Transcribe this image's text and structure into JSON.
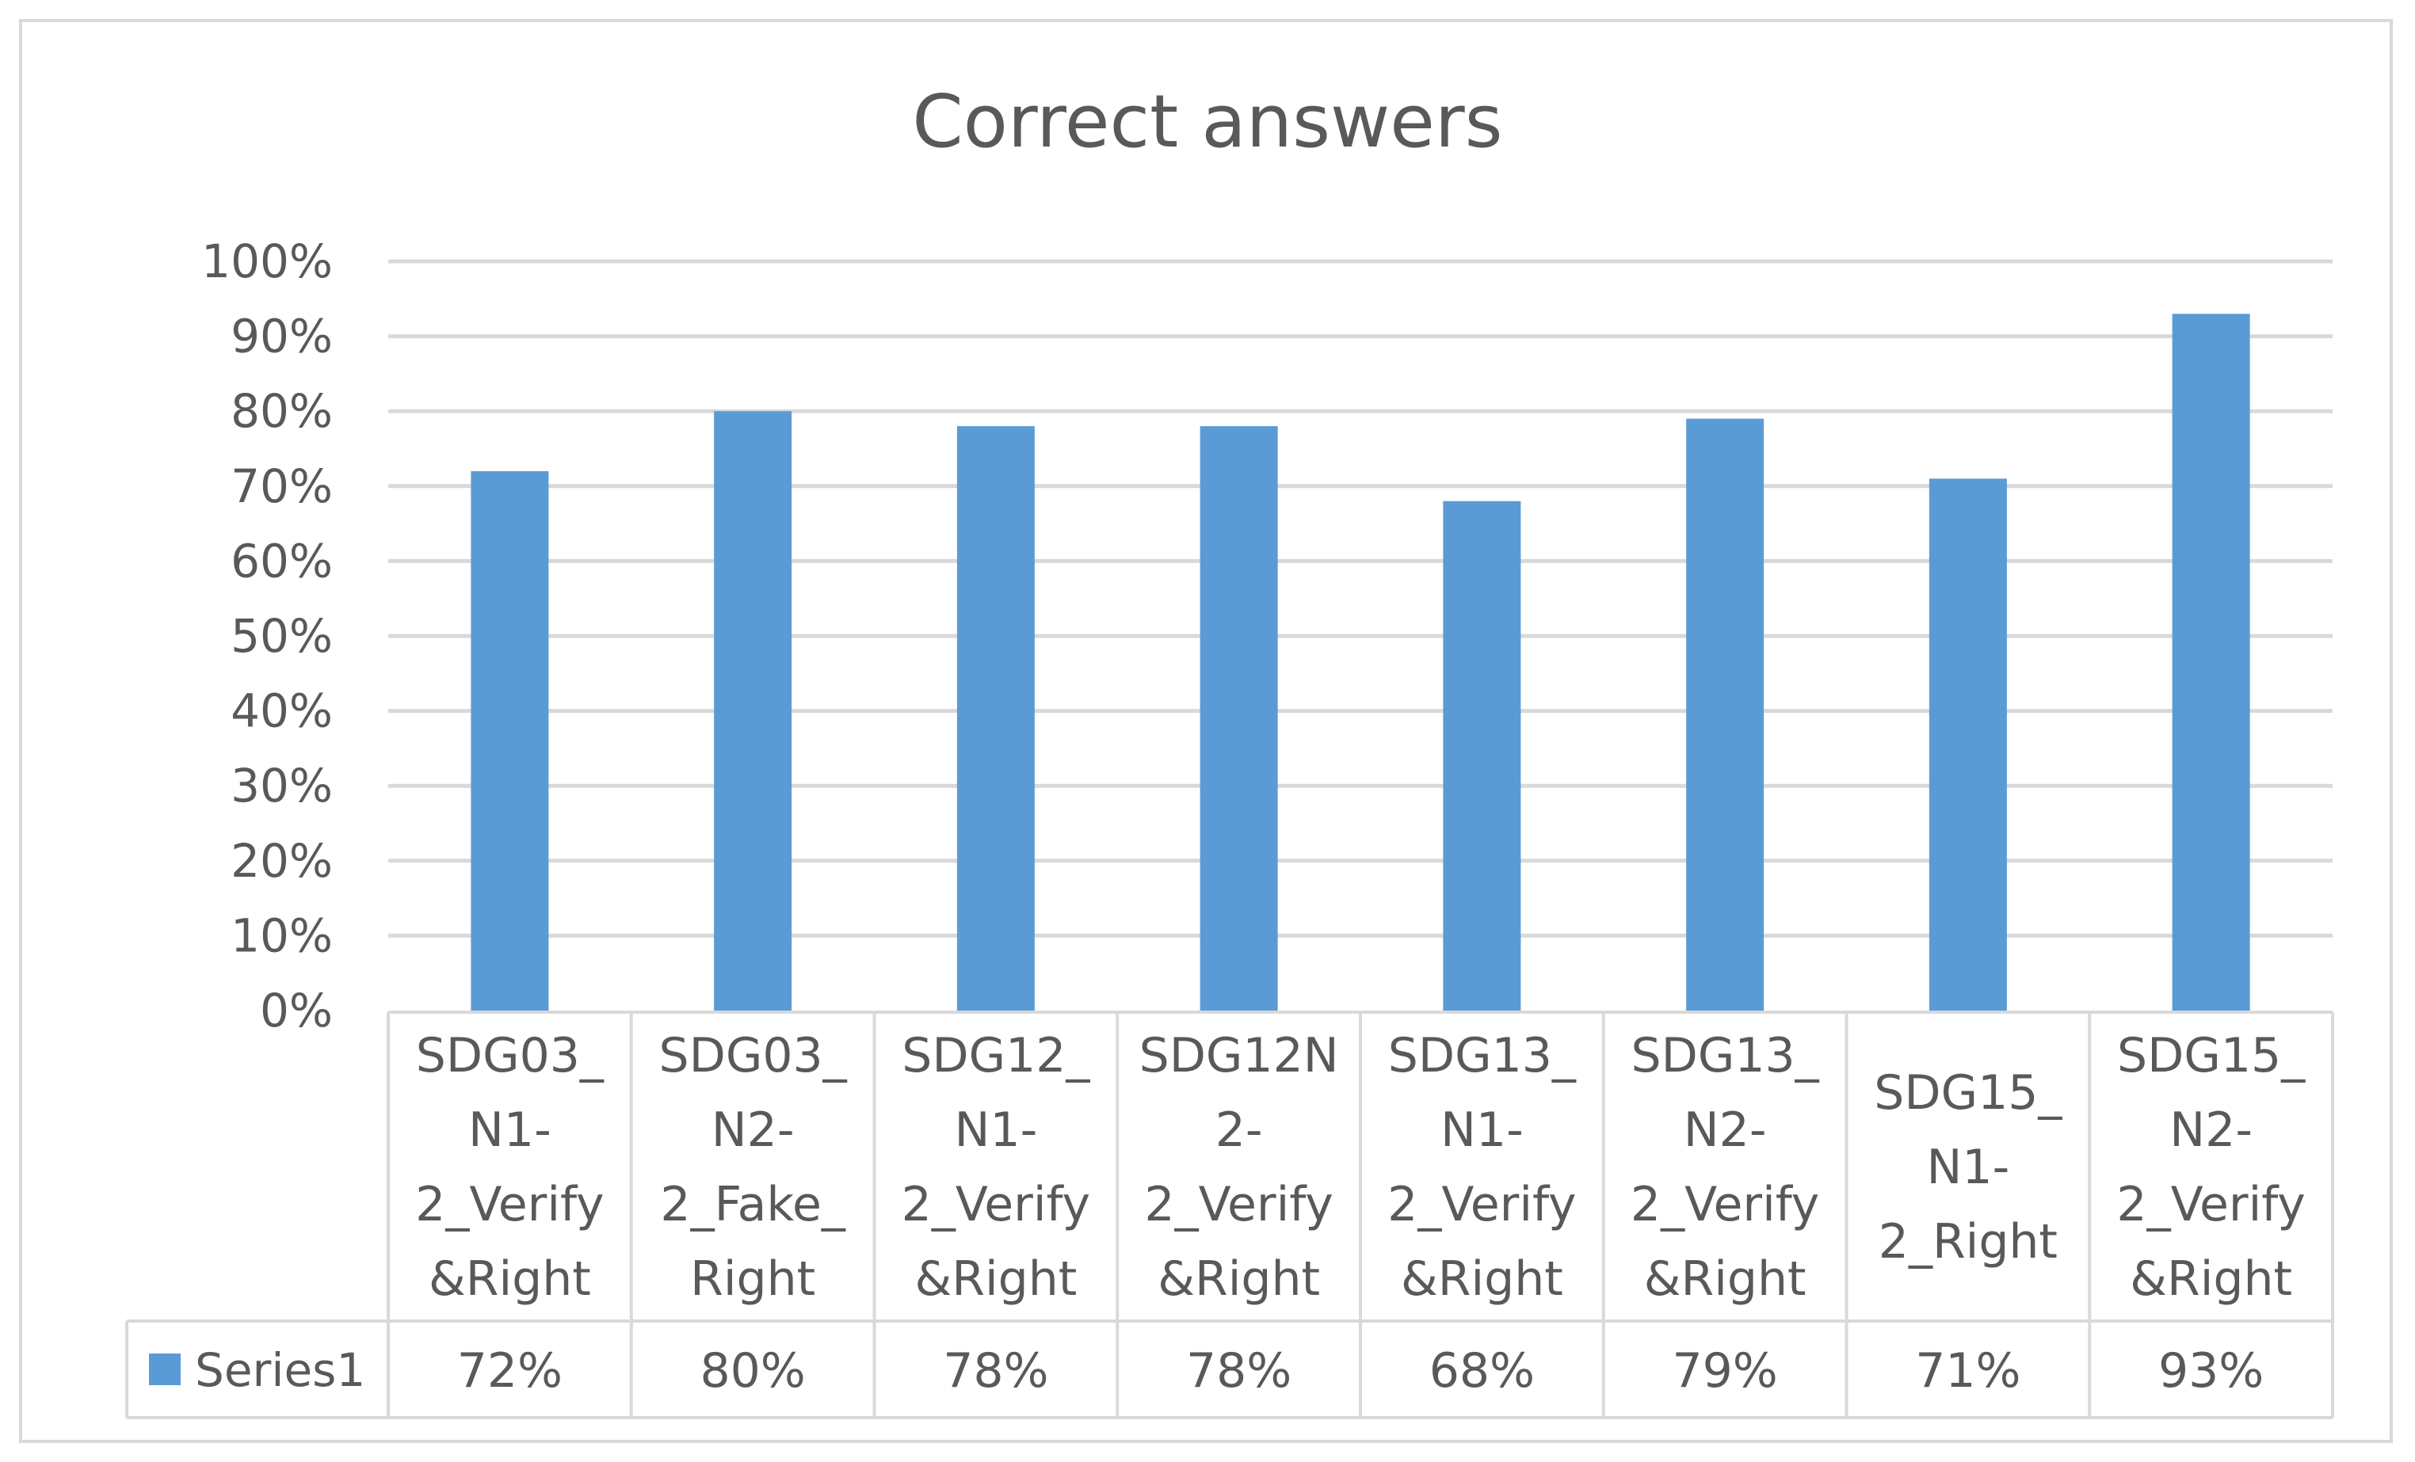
{
  "chart_data": {
    "type": "bar",
    "title": "Correct answers",
    "categories": [
      [
        "SDG03_",
        "N1-",
        "2_Verify",
        "&Right"
      ],
      [
        "SDG03_",
        "N2-",
        "2_Fake_",
        "Right"
      ],
      [
        "SDG12_",
        "N1-",
        "2_Verify",
        "&Right"
      ],
      [
        "SDG12N",
        "2-",
        "2_Verify",
        "&Right"
      ],
      [
        "SDG13_",
        "N1-",
        "2_Verify",
        "&Right"
      ],
      [
        "SDG13_",
        "N2-",
        "2_Verify",
        "&Right"
      ],
      [
        "SDG15_",
        "N1-",
        "2_Right"
      ],
      [
        "SDG15_",
        "N2-",
        "2_Verify",
        "&Right"
      ]
    ],
    "series": [
      {
        "name": "Series1",
        "values": [
          0.72,
          0.8,
          0.78,
          0.78,
          0.68,
          0.79,
          0.71,
          0.93
        ],
        "labels": [
          "72%",
          "80%",
          "78%",
          "78%",
          "68%",
          "79%",
          "71%",
          "93%"
        ]
      }
    ],
    "ylim": [
      0,
      1
    ],
    "yticks": [
      "0%",
      "10%",
      "20%",
      "30%",
      "40%",
      "50%",
      "60%",
      "70%",
      "80%",
      "90%",
      "100%"
    ],
    "grid": true,
    "data_table": true,
    "legend": "data-table",
    "bar_color": "#5b9bd5"
  }
}
